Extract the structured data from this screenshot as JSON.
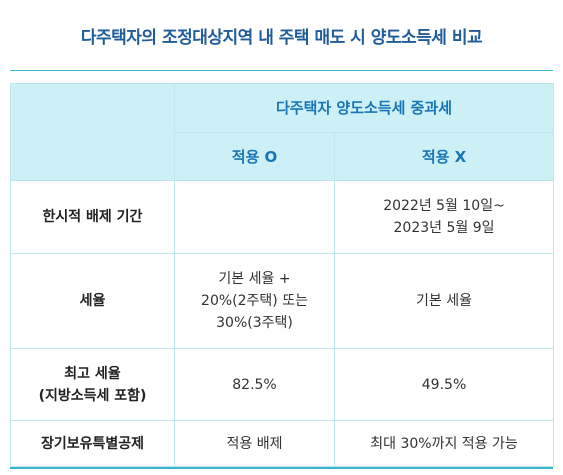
{
  "title": "다주택자의 조정대상지역 내 주택 매도 시 양도소득세 비교",
  "table": {
    "group_header": "다주택자 양도소득세 중과세",
    "col_headers": [
      "적용 O",
      "적용 X"
    ],
    "rows": [
      {
        "label": [
          "한시적 배제 기간"
        ],
        "applied": [],
        "not_applied": [
          "2022년 5월 10일~",
          "2023년 5월 9일"
        ]
      },
      {
        "label": [
          "세율"
        ],
        "applied": [
          "기본 세율 +",
          "20%(2주택) 또는",
          "30%(3주택)"
        ],
        "not_applied": [
          "기본 세율"
        ]
      },
      {
        "label": [
          "최고 세율",
          "(지방소득세 포함)"
        ],
        "applied": [
          "82.5%"
        ],
        "not_applied": [
          "49.5%"
        ]
      },
      {
        "label": [
          "장기보유특별공제"
        ],
        "applied": [
          "적용 배제"
        ],
        "not_applied": [
          "최대 30%까지 적용 가능"
        ]
      }
    ]
  },
  "colors": {
    "title": "#1f5c99",
    "header_bg": "#cdf0f7",
    "header_text": "#1976b5",
    "border": "#bfe7ee",
    "accent_rule": "#39b3d1"
  }
}
